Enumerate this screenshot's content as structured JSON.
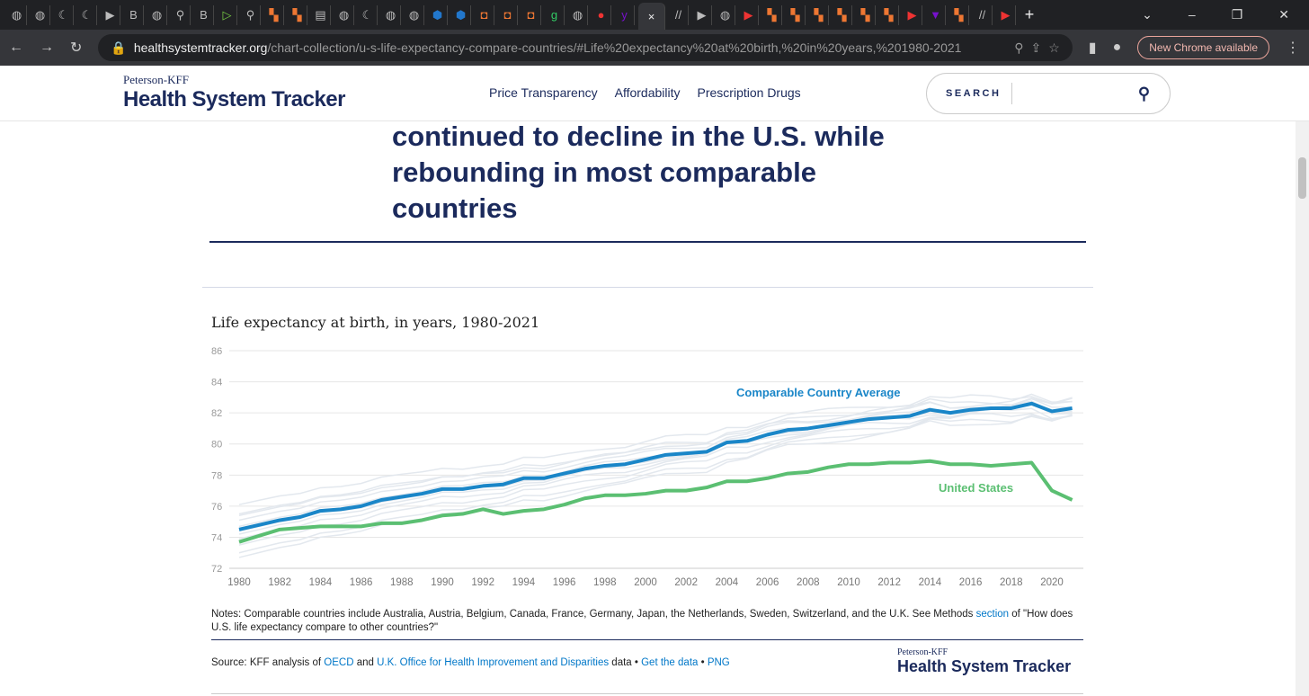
{
  "browser": {
    "url_host": "healthsystemtracker.org",
    "url_path": "/chart-collection/u-s-life-expectancy-compare-countries/#Life%20expectancy%20at%20birth,%20in%20years,%201980-2021",
    "new_chrome": "New Chrome available",
    "tab_close": "×",
    "new_tab": "+"
  },
  "site": {
    "logo_small": "Peterson-KFF",
    "logo_big": "Health System Tracker",
    "nav": [
      "Price Transparency",
      "Affordability",
      "Prescription Drugs"
    ],
    "search_label": "SEARCH"
  },
  "headline": "continued to decline in the U.S. while rebounding in most comparable countries",
  "chart_data": {
    "type": "line",
    "title": "Life expectancy at birth, in years, 1980-2021",
    "xlabel": "",
    "ylabel": "",
    "ylim": [
      72,
      86
    ],
    "yticks": [
      72,
      74,
      76,
      78,
      80,
      82,
      84,
      86
    ],
    "xticks": [
      1980,
      1982,
      1984,
      1986,
      1988,
      1990,
      1992,
      1994,
      1996,
      1998,
      2000,
      2002,
      2004,
      2006,
      2008,
      2010,
      2012,
      2014,
      2016,
      2018,
      2020
    ],
    "x_start": 1980,
    "grid": true,
    "series": [
      {
        "name": "Comparable Country Average",
        "color": "#1a86c8",
        "values": [
          74.5,
          74.8,
          75.1,
          75.3,
          75.7,
          75.8,
          76.0,
          76.4,
          76.6,
          76.8,
          77.1,
          77.1,
          77.3,
          77.4,
          77.8,
          77.8,
          78.1,
          78.4,
          78.6,
          78.7,
          79.0,
          79.3,
          79.4,
          79.5,
          80.1,
          80.2,
          80.6,
          80.9,
          81.0,
          81.2,
          81.4,
          81.6,
          81.7,
          81.8,
          82.2,
          82.0,
          82.2,
          82.3,
          82.3,
          82.6,
          82.1,
          82.3
        ]
      },
      {
        "name": "United States",
        "color": "#5bbf72",
        "values": [
          73.7,
          74.1,
          74.5,
          74.6,
          74.7,
          74.7,
          74.7,
          74.9,
          74.9,
          75.1,
          75.4,
          75.5,
          75.8,
          75.5,
          75.7,
          75.8,
          76.1,
          76.5,
          76.7,
          76.7,
          76.8,
          77.0,
          77.0,
          77.2,
          77.6,
          77.6,
          77.8,
          78.1,
          78.2,
          78.5,
          78.7,
          78.7,
          78.8,
          78.8,
          78.9,
          78.7,
          78.7,
          78.6,
          78.7,
          78.8,
          77.0,
          76.4
        ]
      }
    ],
    "country_offsets_from_average": [
      1.6,
      1.0,
      0.6,
      0.2,
      -0.3,
      -0.6,
      -1.0,
      -1.5,
      -1.8,
      0.9,
      -0.1
    ]
  },
  "notes": {
    "text": "Notes: Comparable countries include Australia, Austria, Belgium, Canada, France, Germany, Japan, the Netherlands, Sweden, Switzerland, and the U.K. See Methods ",
    "link": "section",
    "tail": " of \"How does U.S. life expectancy compare to other countries?\""
  },
  "source": {
    "prefix": "Source: KFF analysis of ",
    "oecd": "OECD",
    "and": " and ",
    "uk": "U.K. Office for Health Improvement and Disparities",
    "data": " data • ",
    "get": "Get the data",
    "dot": " • ",
    "png": "PNG"
  }
}
